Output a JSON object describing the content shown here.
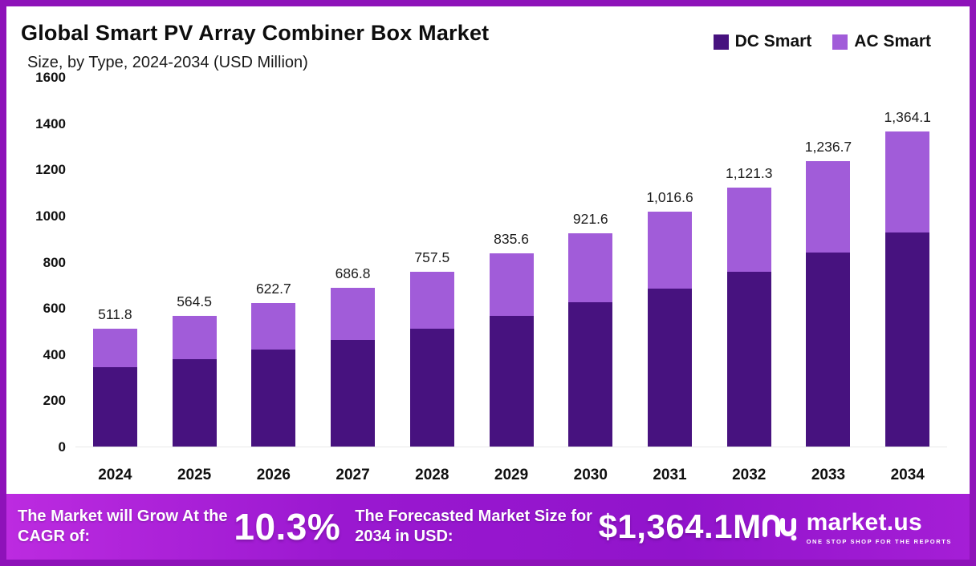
{
  "title": "Global Smart PV Array Combiner Box Market",
  "subtitle": "Size, by Type, 2024-2034 (USD Million)",
  "legend": [
    {
      "label": "DC Smart",
      "color": "#47127f"
    },
    {
      "label": "AC Smart",
      "color": "#a15cd9"
    }
  ],
  "chart_data": {
    "type": "bar",
    "stacked": true,
    "title": "Global Smart PV Array Combiner Box Market Size, by Type, 2024-2034 (USD Million)",
    "categories": [
      "2024",
      "2025",
      "2026",
      "2027",
      "2028",
      "2029",
      "2030",
      "2031",
      "2032",
      "2033",
      "2034"
    ],
    "series": [
      {
        "name": "DC Smart",
        "color": "#47127f",
        "values": [
          345,
          380,
          420,
          460,
          510,
          565,
          625,
          685,
          755,
          840,
          925
        ],
        "note": "estimated from bar heights"
      },
      {
        "name": "AC Smart",
        "color": "#a15cd9",
        "values": [
          166.8,
          184.5,
          202.7,
          226.8,
          247.5,
          270.6,
          296.6,
          331.6,
          366.3,
          396.7,
          439.1
        ],
        "note": "estimated as total minus DC"
      }
    ],
    "totals": [
      511.8,
      564.5,
      622.7,
      686.8,
      757.5,
      835.6,
      921.6,
      1016.6,
      1121.3,
      1236.7,
      1364.1
    ],
    "total_labels": [
      "511.8",
      "564.5",
      "622.7",
      "686.8",
      "757.5",
      "835.6",
      "921.6",
      "1,016.6",
      "1,121.3",
      "1,236.7",
      "1,364.1"
    ],
    "xlabel": "",
    "ylabel": "",
    "ylim": [
      0,
      1600
    ],
    "yticks": [
      0,
      200,
      400,
      600,
      800,
      1000,
      1200,
      1400,
      1600
    ],
    "grid": false,
    "legend_position": "top-right"
  },
  "footer": {
    "cagr_label": "The Market will Grow At the CAGR of:",
    "cagr_value": "10.3%",
    "forecast_label": "The Forecasted Market Size for 2034 in USD:",
    "forecast_value": "$1,364.1M",
    "brand": "market.us",
    "brand_tagline": "ONE STOP SHOP FOR THE REPORTS"
  },
  "colors": {
    "frame": "#8e12b9",
    "dc_smart": "#47127f",
    "ac_smart": "#a15cd9",
    "banner_gradient_start": "#bc2be0",
    "banner_gradient_end": "#a51ed6"
  }
}
